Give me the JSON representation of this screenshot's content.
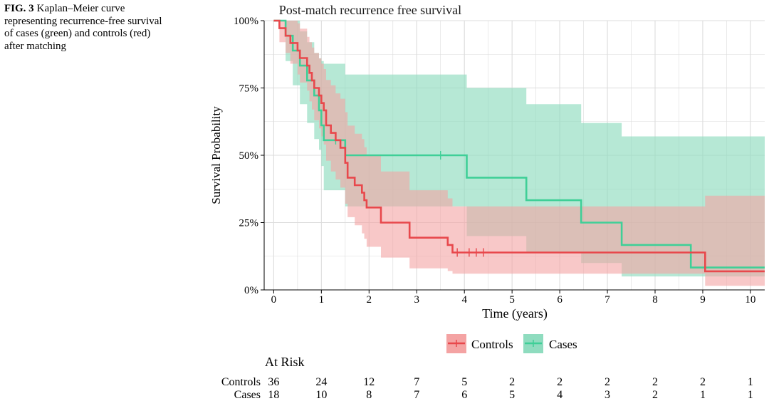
{
  "caption": {
    "label": "FIG. 3",
    "text": "Kaplan–Meier curve representing recurrence-free survival of cases (green) and controls (red) after matching"
  },
  "colors": {
    "controls": "#e8484c",
    "controls_band": "#f4a3a3",
    "cases": "#3fcf97",
    "cases_band": "#8fdcbf",
    "grid": "#dcdcdc"
  },
  "chart_data": {
    "type": "line",
    "subtype": "kaplan-meier",
    "title": "Post-match recurrence free survival",
    "xlabel": "Time (years)",
    "ylabel": "Survival Probability",
    "xlim": [
      -0.2,
      10.3
    ],
    "ylim": [
      0,
      1
    ],
    "xticks": [
      0,
      1,
      2,
      3,
      4,
      5,
      6,
      7,
      8,
      9,
      10
    ],
    "xtick_labels": [
      "0",
      "1",
      "2",
      "3",
      "4",
      "5",
      "6",
      "7",
      "8",
      "9",
      "10"
    ],
    "yticks": [
      0,
      0.25,
      0.5,
      0.75,
      1
    ],
    "ytick_labels": [
      "0%",
      "25%",
      "50%",
      "75%",
      "100%"
    ],
    "grid": true,
    "legend": {
      "position": "bottom",
      "entries": [
        "Controls",
        "Cases"
      ]
    },
    "series": [
      {
        "name": "Controls",
        "steps": [
          [
            0,
            1.0
          ],
          [
            0.12,
            0.972
          ],
          [
            0.25,
            0.944
          ],
          [
            0.35,
            0.917
          ],
          [
            0.5,
            0.889
          ],
          [
            0.55,
            0.861
          ],
          [
            0.7,
            0.833
          ],
          [
            0.75,
            0.806
          ],
          [
            0.8,
            0.778
          ],
          [
            0.85,
            0.75
          ],
          [
            0.95,
            0.722
          ],
          [
            1.0,
            0.694
          ],
          [
            1.05,
            0.667
          ],
          [
            1.1,
            0.611
          ],
          [
            1.2,
            0.583
          ],
          [
            1.3,
            0.556
          ],
          [
            1.4,
            0.528
          ],
          [
            1.5,
            0.472
          ],
          [
            1.55,
            0.417
          ],
          [
            1.7,
            0.389
          ],
          [
            1.85,
            0.361
          ],
          [
            1.9,
            0.333
          ],
          [
            1.95,
            0.306
          ],
          [
            2.25,
            0.25
          ],
          [
            2.85,
            0.194
          ],
          [
            3.65,
            0.167
          ],
          [
            3.75,
            0.139
          ],
          [
            9.05,
            0.069
          ],
          [
            10.3,
            0.069
          ]
        ],
        "censored": [
          [
            3.85,
            0.139
          ],
          [
            4.1,
            0.139
          ],
          [
            4.25,
            0.139
          ],
          [
            4.4,
            0.139
          ]
        ],
        "lower": [
          [
            0,
            1.0
          ],
          [
            0.12,
            0.92
          ],
          [
            0.25,
            0.88
          ],
          [
            0.35,
            0.84
          ],
          [
            0.5,
            0.8
          ],
          [
            0.55,
            0.77
          ],
          [
            0.7,
            0.74
          ],
          [
            0.75,
            0.7
          ],
          [
            0.8,
            0.67
          ],
          [
            0.85,
            0.63
          ],
          [
            0.95,
            0.6
          ],
          [
            1.0,
            0.57
          ],
          [
            1.05,
            0.54
          ],
          [
            1.1,
            0.48
          ],
          [
            1.2,
            0.44
          ],
          [
            1.3,
            0.41
          ],
          [
            1.4,
            0.38
          ],
          [
            1.5,
            0.32
          ],
          [
            1.55,
            0.27
          ],
          [
            1.7,
            0.24
          ],
          [
            1.85,
            0.21
          ],
          [
            1.9,
            0.19
          ],
          [
            1.95,
            0.16
          ],
          [
            2.25,
            0.12
          ],
          [
            2.85,
            0.08
          ],
          [
            3.65,
            0.07
          ],
          [
            3.75,
            0.06
          ],
          [
            9.05,
            0.015
          ],
          [
            10.3,
            0.015
          ]
        ],
        "upper": [
          [
            0,
            1.0
          ],
          [
            0.12,
            1.0
          ],
          [
            0.25,
            1.0
          ],
          [
            0.35,
            1.0
          ],
          [
            0.5,
            0.99
          ],
          [
            0.55,
            0.97
          ],
          [
            0.7,
            0.94
          ],
          [
            0.75,
            0.92
          ],
          [
            0.8,
            0.9
          ],
          [
            0.85,
            0.88
          ],
          [
            0.95,
            0.86
          ],
          [
            1.0,
            0.84
          ],
          [
            1.05,
            0.82
          ],
          [
            1.1,
            0.78
          ],
          [
            1.2,
            0.76
          ],
          [
            1.3,
            0.73
          ],
          [
            1.4,
            0.71
          ],
          [
            1.5,
            0.66
          ],
          [
            1.55,
            0.61
          ],
          [
            1.7,
            0.58
          ],
          [
            1.85,
            0.56
          ],
          [
            1.9,
            0.53
          ],
          [
            1.95,
            0.5
          ],
          [
            2.25,
            0.44
          ],
          [
            2.85,
            0.37
          ],
          [
            3.65,
            0.34
          ],
          [
            3.75,
            0.31
          ],
          [
            9.05,
            0.35
          ],
          [
            10.3,
            0.35
          ]
        ]
      },
      {
        "name": "Cases",
        "steps": [
          [
            0,
            1.0
          ],
          [
            0.25,
            0.944
          ],
          [
            0.4,
            0.889
          ],
          [
            0.55,
            0.833
          ],
          [
            0.7,
            0.778
          ],
          [
            0.85,
            0.722
          ],
          [
            0.95,
            0.667
          ],
          [
            1.0,
            0.611
          ],
          [
            1.05,
            0.556
          ],
          [
            1.5,
            0.5
          ],
          [
            4.05,
            0.417
          ],
          [
            5.3,
            0.333
          ],
          [
            6.45,
            0.25
          ],
          [
            7.3,
            0.167
          ],
          [
            8.75,
            0.083
          ],
          [
            10.3,
            0.083
          ]
        ],
        "censored": [
          [
            1.3,
            0.556
          ],
          [
            3.5,
            0.5
          ]
        ],
        "lower": [
          [
            0,
            1.0
          ],
          [
            0.25,
            0.85
          ],
          [
            0.4,
            0.76
          ],
          [
            0.55,
            0.69
          ],
          [
            0.7,
            0.62
          ],
          [
            0.85,
            0.56
          ],
          [
            0.95,
            0.52
          ],
          [
            1.0,
            0.46
          ],
          [
            1.05,
            0.37
          ],
          [
            1.5,
            0.31
          ],
          [
            4.05,
            0.2
          ],
          [
            5.3,
            0.14
          ],
          [
            6.45,
            0.1
          ],
          [
            7.3,
            0.05
          ],
          [
            8.75,
            0.05
          ],
          [
            10.3,
            0.05
          ]
        ],
        "upper": [
          [
            0,
            1.0
          ],
          [
            0.25,
            1.0
          ],
          [
            0.4,
            1.0
          ],
          [
            0.55,
            0.96
          ],
          [
            0.7,
            0.92
          ],
          [
            0.85,
            0.88
          ],
          [
            0.95,
            0.86
          ],
          [
            1.0,
            0.85
          ],
          [
            1.05,
            0.84
          ],
          [
            1.5,
            0.8
          ],
          [
            4.05,
            0.75
          ],
          [
            5.3,
            0.69
          ],
          [
            6.45,
            0.62
          ],
          [
            7.3,
            0.57
          ],
          [
            8.75,
            0.57
          ],
          [
            10.3,
            0.57
          ]
        ]
      }
    ],
    "at_risk": {
      "title": "At Risk",
      "rows": [
        {
          "name": "Controls",
          "values": [
            "36",
            "24",
            "12",
            "7",
            "5",
            "2",
            "2",
            "2",
            "2",
            "2",
            "1"
          ]
        },
        {
          "name": "Cases",
          "values": [
            "18",
            "10",
            "8",
            "7",
            "6",
            "5",
            "4",
            "3",
            "2",
            "1",
            "1"
          ]
        }
      ]
    }
  }
}
